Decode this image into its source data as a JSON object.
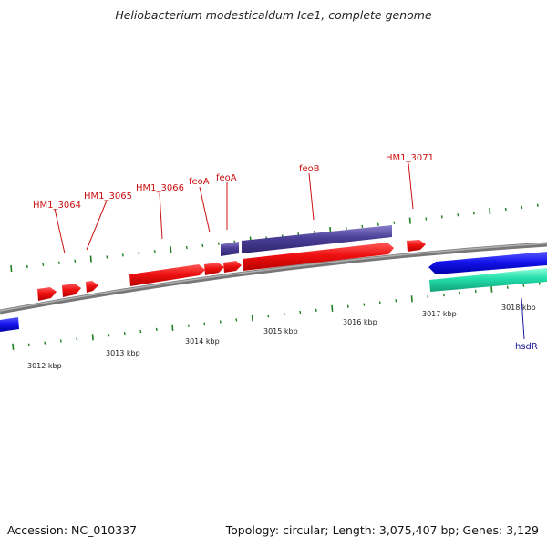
{
  "title": "Heliobacterium modesticaldum Ice1, complete genome",
  "footer": {
    "accession": "Accession: NC_010337",
    "summary": "Topology: circular; Length: 3,075,407 bp; Genes: 3,129"
  },
  "colors": {
    "background": "#ffffff",
    "backbone": "#8a8a8a",
    "tick": "#1e7f1e",
    "gene_forward": "#ee1111",
    "gene_reverse": "#1414ee",
    "gene_hsd": "#22ddaa",
    "gene_feo": "#4a3e96",
    "label_forward": "#cc1111",
    "label_reverse": "#1a1a99",
    "kbp_label": "#222222"
  },
  "kbp_labels": [
    "3012 kbp",
    "3013 kbp",
    "3014 kbp",
    "3015 kbp",
    "3016 kbp",
    "3017 kbp",
    "3018 kbp"
  ],
  "gene_labels": [
    {
      "text": "HM1_3064",
      "strand": "forward"
    },
    {
      "text": "HM1_3065",
      "strand": "forward"
    },
    {
      "text": "HM1_3066",
      "strand": "forward"
    },
    {
      "text": "feoA",
      "strand": "forward"
    },
    {
      "text": "feoA",
      "strand": "forward"
    },
    {
      "text": "feoB",
      "strand": "forward"
    },
    {
      "text": "HM1_3071",
      "strand": "forward"
    },
    {
      "text": "hsdR",
      "strand": "reverse"
    }
  ]
}
